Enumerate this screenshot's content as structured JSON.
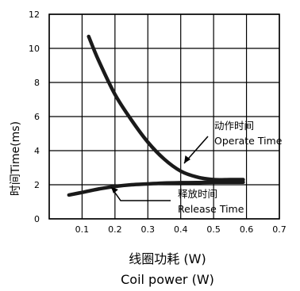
{
  "chart_data": {
    "type": "line",
    "ylabel": "时间Time(ms)",
    "xlabel_cn": "线圈功耗 (W)",
    "xlabel_en": "Coil power (W)",
    "xlim": [
      0,
      0.7
    ],
    "ylim": [
      0,
      12
    ],
    "x_ticks": [
      "0.1",
      "0.2",
      "0.3",
      "0.4",
      "0.5",
      "0.6",
      "0.7"
    ],
    "y_ticks": [
      "0",
      "2",
      "4",
      "6",
      "8",
      "10",
      "12"
    ],
    "grid": true,
    "series": [
      {
        "name_cn": "动作时间",
        "name_en": "Operate Time",
        "color": "#1a1a1a",
        "x": [
          0.12,
          0.15,
          0.2,
          0.25,
          0.3,
          0.35,
          0.4,
          0.45,
          0.5,
          0.55,
          0.59
        ],
        "y": [
          10.7,
          9.3,
          7.3,
          5.8,
          4.5,
          3.5,
          2.8,
          2.45,
          2.3,
          2.3,
          2.3
        ]
      },
      {
        "name_cn": "释放时间",
        "name_en": "Release Time",
        "color": "#1a1a1a",
        "x": [
          0.06,
          0.1,
          0.15,
          0.2,
          0.25,
          0.3,
          0.35,
          0.4,
          0.45,
          0.5,
          0.55,
          0.59
        ],
        "y": [
          1.4,
          1.55,
          1.75,
          1.9,
          2.0,
          2.05,
          2.1,
          2.12,
          2.13,
          2.15,
          2.15,
          2.15
        ]
      }
    ]
  }
}
